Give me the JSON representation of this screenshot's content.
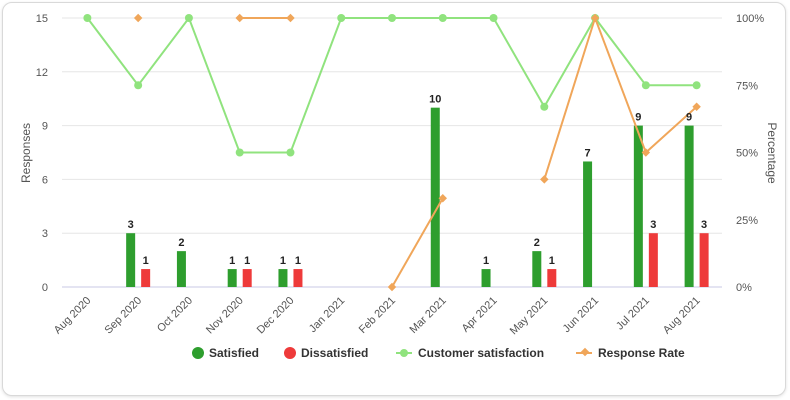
{
  "chart_data": {
    "type": "bar",
    "categories": [
      "Aug 2020",
      "Sep 2020",
      "Oct 2020",
      "Nov 2020",
      "Dec 2020",
      "Jan 2021",
      "Feb 2021",
      "Mar 2021",
      "Apr 2021",
      "May 2021",
      "Jun 2021",
      "Jul 2021",
      "Aug 2021"
    ],
    "y_left": {
      "label": "Responses",
      "ylim": [
        0,
        15
      ],
      "ticks": [
        "0",
        "3",
        "6",
        "9",
        "12",
        "15"
      ]
    },
    "y_right": {
      "label": "Percentage",
      "ylim": [
        0,
        100
      ],
      "ticks": [
        "0%",
        "25%",
        "50%",
        "75%",
        "100%"
      ]
    },
    "grid": true,
    "legend_position": "bottom",
    "series": [
      {
        "name": "Satisfied",
        "type": "bar",
        "axis": "left",
        "color": "#2e9e2e",
        "values": [
          null,
          3,
          2,
          1,
          1,
          null,
          null,
          10,
          1,
          2,
          7,
          9,
          9
        ]
      },
      {
        "name": "Dissatisfied",
        "type": "bar",
        "axis": "left",
        "color": "#ee3a3a",
        "values": [
          null,
          1,
          null,
          1,
          1,
          null,
          null,
          null,
          null,
          1,
          null,
          3,
          3
        ]
      },
      {
        "name": "Customer satisfaction",
        "type": "line",
        "axis": "right",
        "color": "#90e37e",
        "values": [
          100,
          75,
          100,
          50,
          50,
          100,
          100,
          100,
          100,
          67,
          100,
          75,
          75
        ]
      },
      {
        "name": "Response Rate",
        "type": "line",
        "axis": "right",
        "color": "#f0a65a",
        "values": [
          null,
          100,
          null,
          100,
          100,
          null,
          0,
          33,
          null,
          40,
          100,
          50,
          67
        ]
      }
    ]
  }
}
